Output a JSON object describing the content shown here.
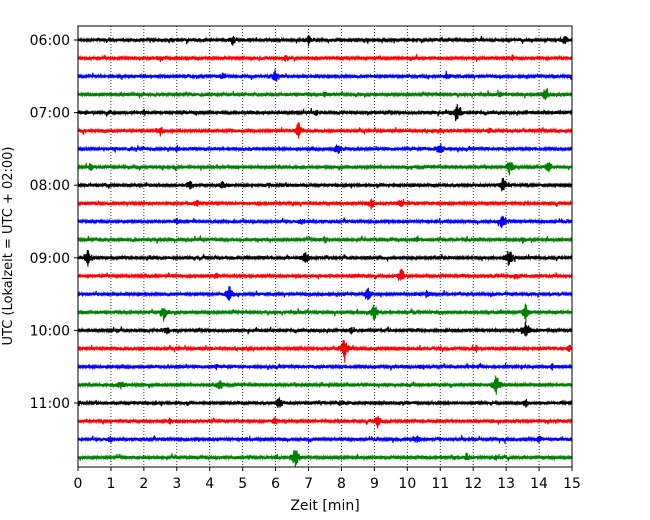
{
  "chart_data": {
    "type": "line",
    "xlabel": "Zeit  [min]",
    "ylabel": "UTC (Lokalzeit = UTC + 02:00)",
    "xlim": [
      0,
      15
    ],
    "x_ticks": [
      "0",
      "1",
      "2",
      "3",
      "4",
      "5",
      "6",
      "7",
      "8",
      "9",
      "10",
      "11",
      "12",
      "13",
      "14",
      "15"
    ],
    "y_tick_labels": [
      "06:00",
      "07:00",
      "08:00",
      "09:00",
      "10:00",
      "11:00"
    ],
    "grid": "vertical dotted at each minute",
    "trace_start": "06:00",
    "trace_interval_min": 15,
    "trace_colors": [
      "#000000",
      "#ff0000",
      "#0000ff",
      "#008000"
    ],
    "traces": [
      {
        "label": "06:00",
        "color": "#000000",
        "events": [
          [
            7.0,
            0.6
          ],
          [
            4.7,
            0.5
          ],
          [
            14.8,
            0.5
          ]
        ]
      },
      {
        "label": "06:15",
        "color": "#ff0000",
        "events": [
          [
            6.3,
            0.4
          ],
          [
            2.5,
            0.3
          ],
          [
            13.2,
            0.3
          ]
        ]
      },
      {
        "label": "06:30",
        "color": "#0000ff",
        "events": [
          [
            6.0,
            0.8
          ],
          [
            4.4,
            0.3
          ],
          [
            11.2,
            0.3
          ]
        ]
      },
      {
        "label": "06:45",
        "color": "#008000",
        "events": [
          [
            14.2,
            0.9
          ],
          [
            12.8,
            0.3
          ],
          [
            7.5,
            0.3
          ]
        ]
      },
      {
        "label": "07:00",
        "color": "#000000",
        "events": [
          [
            11.5,
            1.2
          ],
          [
            2.0,
            0.4
          ],
          [
            7.2,
            0.3
          ]
        ]
      },
      {
        "label": "07:15",
        "color": "#ff0000",
        "events": [
          [
            6.7,
            1.0
          ],
          [
            2.5,
            0.5
          ],
          [
            12.5,
            0.3
          ]
        ]
      },
      {
        "label": "07:30",
        "color": "#0000ff",
        "events": [
          [
            7.9,
            0.7
          ],
          [
            11.0,
            0.7
          ],
          [
            3.0,
            0.3
          ]
        ]
      },
      {
        "label": "07:45",
        "color": "#008000",
        "events": [
          [
            13.1,
            0.8
          ],
          [
            14.3,
            0.6
          ],
          [
            0.4,
            0.4
          ]
        ]
      },
      {
        "label": "08:00",
        "color": "#000000",
        "events": [
          [
            12.9,
            0.9
          ],
          [
            3.4,
            0.5
          ],
          [
            4.4,
            0.5
          ]
        ]
      },
      {
        "label": "08:15",
        "color": "#ff0000",
        "events": [
          [
            8.9,
            0.6
          ],
          [
            3.6,
            0.4
          ],
          [
            9.8,
            0.4
          ]
        ]
      },
      {
        "label": "08:30",
        "color": "#0000ff",
        "events": [
          [
            12.9,
            0.9
          ],
          [
            6.8,
            0.3
          ],
          [
            3.0,
            0.3
          ]
        ]
      },
      {
        "label": "08:45",
        "color": "#008000",
        "events": [
          [
            7.5,
            0.3
          ],
          [
            10.3,
            0.3
          ],
          [
            13.5,
            0.3
          ]
        ]
      },
      {
        "label": "09:00",
        "color": "#000000",
        "events": [
          [
            0.3,
            1.0
          ],
          [
            13.1,
            1.2
          ],
          [
            6.9,
            0.7
          ]
        ]
      },
      {
        "label": "09:15",
        "color": "#ff0000",
        "events": [
          [
            9.8,
            1.0
          ],
          [
            4.2,
            0.3
          ],
          [
            13.3,
            0.3
          ]
        ]
      },
      {
        "label": "09:30",
        "color": "#0000ff",
        "events": [
          [
            4.6,
            1.0
          ],
          [
            8.8,
            0.9
          ],
          [
            10.6,
            0.3
          ]
        ]
      },
      {
        "label": "09:45",
        "color": "#008000",
        "events": [
          [
            2.6,
            1.0
          ],
          [
            9.0,
            1.0
          ],
          [
            13.6,
            1.0
          ]
        ]
      },
      {
        "label": "10:00",
        "color": "#000000",
        "events": [
          [
            13.6,
            1.4
          ],
          [
            2.7,
            0.4
          ],
          [
            8.3,
            0.3
          ]
        ]
      },
      {
        "label": "10:15",
        "color": "#ff0000",
        "events": [
          [
            8.1,
            1.5
          ],
          [
            12.1,
            0.4
          ],
          [
            14.9,
            0.4
          ]
        ]
      },
      {
        "label": "10:30",
        "color": "#0000ff",
        "events": [
          [
            4.2,
            0.3
          ],
          [
            10.4,
            0.3
          ],
          [
            14.4,
            0.3
          ]
        ]
      },
      {
        "label": "10:45",
        "color": "#008000",
        "events": [
          [
            12.7,
            1.2
          ],
          [
            1.3,
            0.5
          ],
          [
            4.3,
            0.5
          ]
        ]
      },
      {
        "label": "11:00",
        "color": "#000000",
        "events": [
          [
            6.1,
            0.7
          ],
          [
            8.0,
            0.3
          ],
          [
            13.6,
            0.5
          ]
        ]
      },
      {
        "label": "11:15",
        "color": "#ff0000",
        "events": [
          [
            9.1,
            0.9
          ],
          [
            6.0,
            0.5
          ],
          [
            2.8,
            0.3
          ]
        ]
      },
      {
        "label": "11:30",
        "color": "#0000ff",
        "events": [
          [
            10.3,
            0.4
          ],
          [
            14.0,
            0.4
          ],
          [
            1.0,
            0.3
          ]
        ]
      },
      {
        "label": "11:45",
        "color": "#008000",
        "events": [
          [
            6.6,
            1.4
          ],
          [
            11.8,
            0.4
          ],
          [
            12.7,
            0.3
          ]
        ]
      }
    ]
  }
}
